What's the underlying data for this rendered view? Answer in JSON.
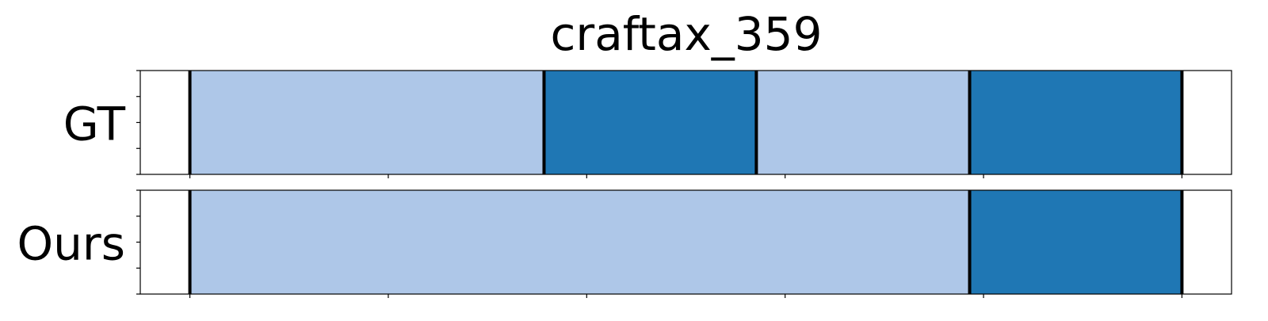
{
  "chart_data": {
    "type": "bar",
    "title": "craftax_359",
    "x_range": [
      0,
      110
    ],
    "x_ticks": [
      5,
      25,
      45,
      65,
      85,
      105
    ],
    "grid": false,
    "legend": "none",
    "colors": {
      "light": "#aec7e8",
      "dark": "#1f77b4",
      "boundary": "#000000",
      "frame": "#000000",
      "background": "#ffffff"
    },
    "series": [
      {
        "name": "GT",
        "segments": [
          {
            "start": 5,
            "end": 40.7,
            "color": "light"
          },
          {
            "start": 40.7,
            "end": 62.1,
            "color": "dark"
          },
          {
            "start": 62.1,
            "end": 83.6,
            "color": "light"
          },
          {
            "start": 83.6,
            "end": 105,
            "color": "dark"
          }
        ],
        "boundaries": [
          5,
          40.7,
          62.1,
          83.6,
          105
        ]
      },
      {
        "name": "Ours",
        "segments": [
          {
            "start": 5,
            "end": 83.6,
            "color": "light"
          },
          {
            "start": 83.6,
            "end": 105,
            "color": "dark"
          }
        ],
        "boundaries": [
          5,
          83.6,
          105
        ]
      }
    ]
  }
}
